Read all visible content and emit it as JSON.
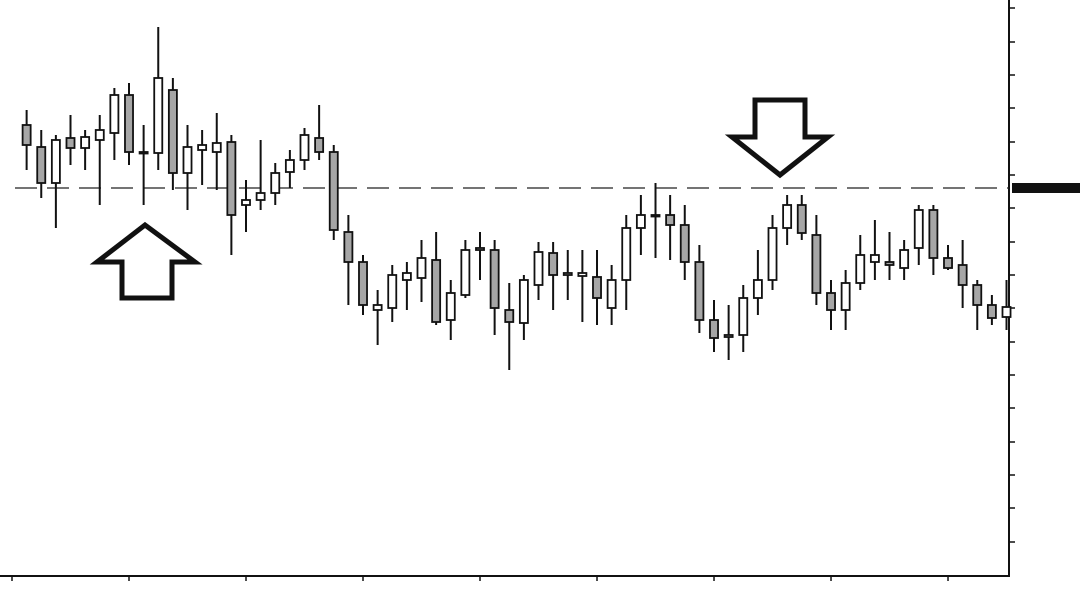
{
  "chart_data": {
    "type": "candlestick",
    "x": [
      1,
      2,
      3,
      4,
      5,
      6,
      7,
      8,
      9,
      10,
      11,
      12,
      13,
      14,
      15,
      16,
      17,
      18,
      19,
      20,
      21,
      22,
      23,
      24,
      25,
      26,
      27,
      28,
      29,
      30,
      31,
      32,
      33,
      34,
      35,
      36,
      37,
      38,
      39,
      40,
      41,
      42,
      43,
      44,
      45,
      46,
      47,
      48,
      49,
      50,
      51,
      52,
      53,
      54,
      55,
      56,
      57,
      58,
      59,
      60,
      61,
      62,
      63,
      64,
      65,
      66,
      67,
      68
    ],
    "open": [
      450,
      428,
      392,
      437,
      427,
      435,
      442,
      480,
      422,
      422,
      485,
      402,
      425,
      423,
      433,
      370,
      375,
      382,
      403,
      415,
      437,
      423,
      343,
      313,
      265,
      267,
      295,
      297,
      315,
      255,
      280,
      325,
      325,
      265,
      252,
      290,
      322,
      300,
      299,
      298,
      267,
      295,
      347,
      359,
      360,
      350,
      313,
      255,
      238,
      240,
      277,
      295,
      347,
      370,
      340,
      282,
      265,
      292,
      313,
      313,
      307,
      327,
      365,
      317,
      310,
      290,
      270,
      258
    ],
    "high": [
      465,
      445,
      440,
      460,
      445,
      460,
      487,
      492,
      450,
      548,
      497,
      450,
      445,
      462,
      440,
      395,
      435,
      412,
      425,
      447,
      470,
      430,
      360,
      320,
      285,
      310,
      313,
      335,
      343,
      295,
      335,
      343,
      335,
      292,
      300,
      333,
      333,
      325,
      325,
      325,
      310,
      360,
      380,
      392,
      380,
      370,
      330,
      275,
      270,
      290,
      325,
      360,
      380,
      380,
      360,
      295,
      305,
      340,
      355,
      343,
      335,
      370,
      370,
      330,
      335,
      295,
      280,
      295
    ],
    "low": [
      405,
      377,
      347,
      410,
      405,
      370,
      415,
      410,
      370,
      405,
      385,
      365,
      390,
      385,
      320,
      343,
      365,
      370,
      387,
      405,
      415,
      335,
      270,
      260,
      230,
      253,
      265,
      273,
      250,
      235,
      277,
      295,
      240,
      205,
      235,
      275,
      265,
      275,
      253,
      250,
      250,
      265,
      320,
      317,
      315,
      295,
      242,
      223,
      215,
      223,
      260,
      285,
      330,
      335,
      270,
      245,
      245,
      285,
      295,
      295,
      295,
      310,
      300,
      305,
      267,
      245,
      250,
      245
    ],
    "close": [
      430,
      392,
      435,
      427,
      438,
      445,
      480,
      423,
      423,
      497,
      402,
      428,
      430,
      432,
      360,
      375,
      382,
      402,
      415,
      440,
      423,
      345,
      313,
      270,
      270,
      300,
      302,
      317,
      253,
      282,
      325,
      327,
      267,
      253,
      295,
      323,
      300,
      302,
      302,
      277,
      295,
      347,
      360,
      360,
      350,
      313,
      255,
      237,
      240,
      277,
      295,
      347,
      370,
      342,
      282,
      265,
      292,
      320,
      320,
      310,
      325,
      365,
      317,
      307,
      290,
      270,
      257,
      268
    ],
    "up_color": "#ffffff",
    "down_color": "#a6a6a6",
    "line_color": "#111111",
    "xlim": [
      0,
      68.17
    ],
    "ylim": [
      0,
      575
    ],
    "xticks": [
      0,
      8,
      16,
      24,
      32,
      40,
      48,
      56,
      64
    ],
    "yticks": [
      33,
      67,
      100,
      133,
      167,
      200,
      233,
      267,
      300,
      333,
      367,
      400,
      433,
      467,
      500,
      533,
      567
    ],
    "hline": 387
  }
}
